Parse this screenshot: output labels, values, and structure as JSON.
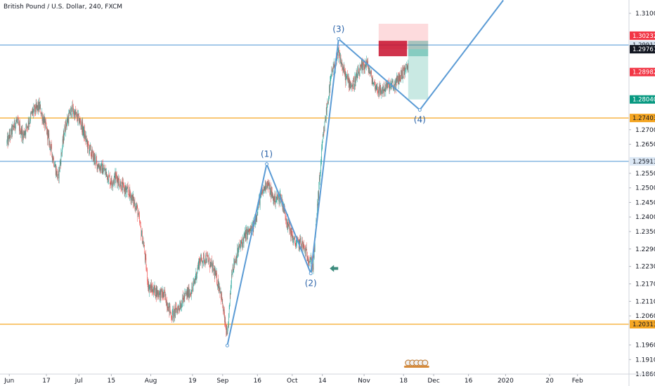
{
  "chart_data": {
    "type": "candlestick",
    "title": "British Pound / U.S. Dollar, 240, FXCM",
    "x_ticks": [
      "Jun",
      "17",
      "Jul",
      "15",
      "Aug",
      "19",
      "Sep",
      "16",
      "Oct",
      "14",
      "Nov",
      "18",
      "Dec",
      "16",
      "2020",
      "20",
      "Feb"
    ],
    "y_ticks": [
      "1.31000",
      "1.30232",
      "1.29912",
      "1.29767",
      "1.28982",
      "1.28040",
      "1.27403",
      "1.27000",
      "1.26500",
      "1.25913",
      "1.25500",
      "1.25000",
      "1.24500",
      "1.24000",
      "1.23500",
      "1.22900",
      "1.22300",
      "1.21700",
      "1.21100",
      "1.20600",
      "1.20313",
      "1.19600",
      "1.19100",
      "1.18600"
    ],
    "ylim": [
      1.185,
      1.3145
    ],
    "horizontal_levels": [
      {
        "value": 1.29912,
        "color": "#6fa8dc",
        "tag": "1.29912"
      },
      {
        "value": 1.27403,
        "color": "#f5a623",
        "tag": "1.27403"
      },
      {
        "value": 1.25913,
        "color": "#6fa8dc",
        "tag": "1.25913"
      },
      {
        "value": 1.20313,
        "color": "#f5a623",
        "tag": "1.20313"
      }
    ],
    "price_tags": [
      {
        "value": 1.30232,
        "bg": "#f23645",
        "fg": "#ffffff",
        "text": "1.30232"
      },
      {
        "value": 1.29912,
        "bg": "#dce8f5",
        "fg": "#131722",
        "text": "1.29912"
      },
      {
        "value": 1.29767,
        "bg": "#131722",
        "fg": "#ffffff",
        "text": "1.29767"
      },
      {
        "value": 1.28982,
        "bg": "#f23645",
        "fg": "#ffffff",
        "text": "1.28982"
      },
      {
        "value": 1.2804,
        "bg": "#089981",
        "fg": "#ffffff",
        "text": "1.28040"
      },
      {
        "value": 1.27403,
        "bg": "#f5a623",
        "fg": "#131722",
        "text": "1.27403"
      },
      {
        "value": 1.25913,
        "bg": "#dce8f5",
        "fg": "#131722",
        "text": "1.25913"
      },
      {
        "value": 1.20313,
        "bg": "#f5a623",
        "fg": "#131722",
        "text": "1.20313"
      }
    ],
    "wave_labels": [
      "(1)",
      "(2)",
      "(3)",
      "(4)"
    ],
    "wave_points": [
      {
        "date": "2019-09-03",
        "price": 1.1958
      },
      {
        "date": "2019-09-20",
        "price": 1.2582
      },
      {
        "date": "2019-10-09",
        "price": 1.2206
      },
      {
        "date": "2019-10-21",
        "price": 1.3012
      },
      {
        "date": "2019-11-25",
        "price": 1.2768
      },
      {
        "date": "2019-12-31",
        "price": 1.3145
      }
    ],
    "position": {
      "entry": 1.29767,
      "stop": 1.30232,
      "target": 1.2804,
      "range": [
        "2019-11-20",
        "2019-11-28"
      ]
    },
    "series": {
      "type": "candlestick",
      "colors": {
        "up": "#26a69a",
        "down": "#ef5350"
      },
      "points": [
        {
          "date": "2019-05-31",
          "price": 1.2655
        },
        {
          "date": "2019-06-04",
          "price": 1.273
        },
        {
          "date": "2019-06-07",
          "price": 1.268
        },
        {
          "date": "2019-06-11",
          "price": 1.276
        },
        {
          "date": "2019-06-14",
          "price": 1.278
        },
        {
          "date": "2019-06-17",
          "price": 1.27
        },
        {
          "date": "2019-06-20",
          "price": 1.26
        },
        {
          "date": "2019-06-22",
          "price": 1.253
        },
        {
          "date": "2019-06-25",
          "price": 1.271
        },
        {
          "date": "2019-06-28",
          "price": 1.277
        },
        {
          "date": "2019-07-02",
          "price": 1.272
        },
        {
          "date": "2019-07-05",
          "price": 1.264
        },
        {
          "date": "2019-07-09",
          "price": 1.258
        },
        {
          "date": "2019-07-12",
          "price": 1.256
        },
        {
          "date": "2019-07-15",
          "price": 1.252
        },
        {
          "date": "2019-07-17",
          "price": 1.254
        },
        {
          "date": "2019-07-20",
          "price": 1.25
        },
        {
          "date": "2019-07-23",
          "price": 1.248
        },
        {
          "date": "2019-07-26",
          "price": 1.243
        },
        {
          "date": "2019-07-29",
          "price": 1.23
        },
        {
          "date": "2019-07-31",
          "price": 1.216
        },
        {
          "date": "2019-08-04",
          "price": 1.214
        },
        {
          "date": "2019-08-07",
          "price": 1.213
        },
        {
          "date": "2019-08-10",
          "price": 1.206
        },
        {
          "date": "2019-08-13",
          "price": 1.209
        },
        {
          "date": "2019-08-16",
          "price": 1.213
        },
        {
          "date": "2019-08-19",
          "price": 1.215
        },
        {
          "date": "2019-08-22",
          "price": 1.225
        },
        {
          "date": "2019-08-25",
          "price": 1.226
        },
        {
          "date": "2019-08-28",
          "price": 1.222
        },
        {
          "date": "2019-08-31",
          "price": 1.215
        },
        {
          "date": "2019-09-03",
          "price": 1.198
        },
        {
          "date": "2019-09-05",
          "price": 1.222
        },
        {
          "date": "2019-09-08",
          "price": 1.229
        },
        {
          "date": "2019-09-11",
          "price": 1.234
        },
        {
          "date": "2019-09-14",
          "price": 1.236
        },
        {
          "date": "2019-09-17",
          "price": 1.246
        },
        {
          "date": "2019-09-20",
          "price": 1.252
        },
        {
          "date": "2019-09-23",
          "price": 1.246
        },
        {
          "date": "2019-09-26",
          "price": 1.247
        },
        {
          "date": "2019-09-29",
          "price": 1.238
        },
        {
          "date": "2019-10-02",
          "price": 1.231
        },
        {
          "date": "2019-10-05",
          "price": 1.231
        },
        {
          "date": "2019-10-08",
          "price": 1.226
        },
        {
          "date": "2019-10-10",
          "price": 1.223
        },
        {
          "date": "2019-10-12",
          "price": 1.245
        },
        {
          "date": "2019-10-14",
          "price": 1.265
        },
        {
          "date": "2019-10-16",
          "price": 1.278
        },
        {
          "date": "2019-10-18",
          "price": 1.289
        },
        {
          "date": "2019-10-21",
          "price": 1.296
        },
        {
          "date": "2019-10-24",
          "price": 1.288
        },
        {
          "date": "2019-10-27",
          "price": 1.285
        },
        {
          "date": "2019-10-30",
          "price": 1.29
        },
        {
          "date": "2019-11-02",
          "price": 1.293
        },
        {
          "date": "2019-11-05",
          "price": 1.286
        },
        {
          "date": "2019-11-08",
          "price": 1.283
        },
        {
          "date": "2019-11-11",
          "price": 1.285
        },
        {
          "date": "2019-11-14",
          "price": 1.285
        },
        {
          "date": "2019-11-17",
          "price": 1.289
        },
        {
          "date": "2019-11-20",
          "price": 1.292
        }
      ]
    }
  }
}
